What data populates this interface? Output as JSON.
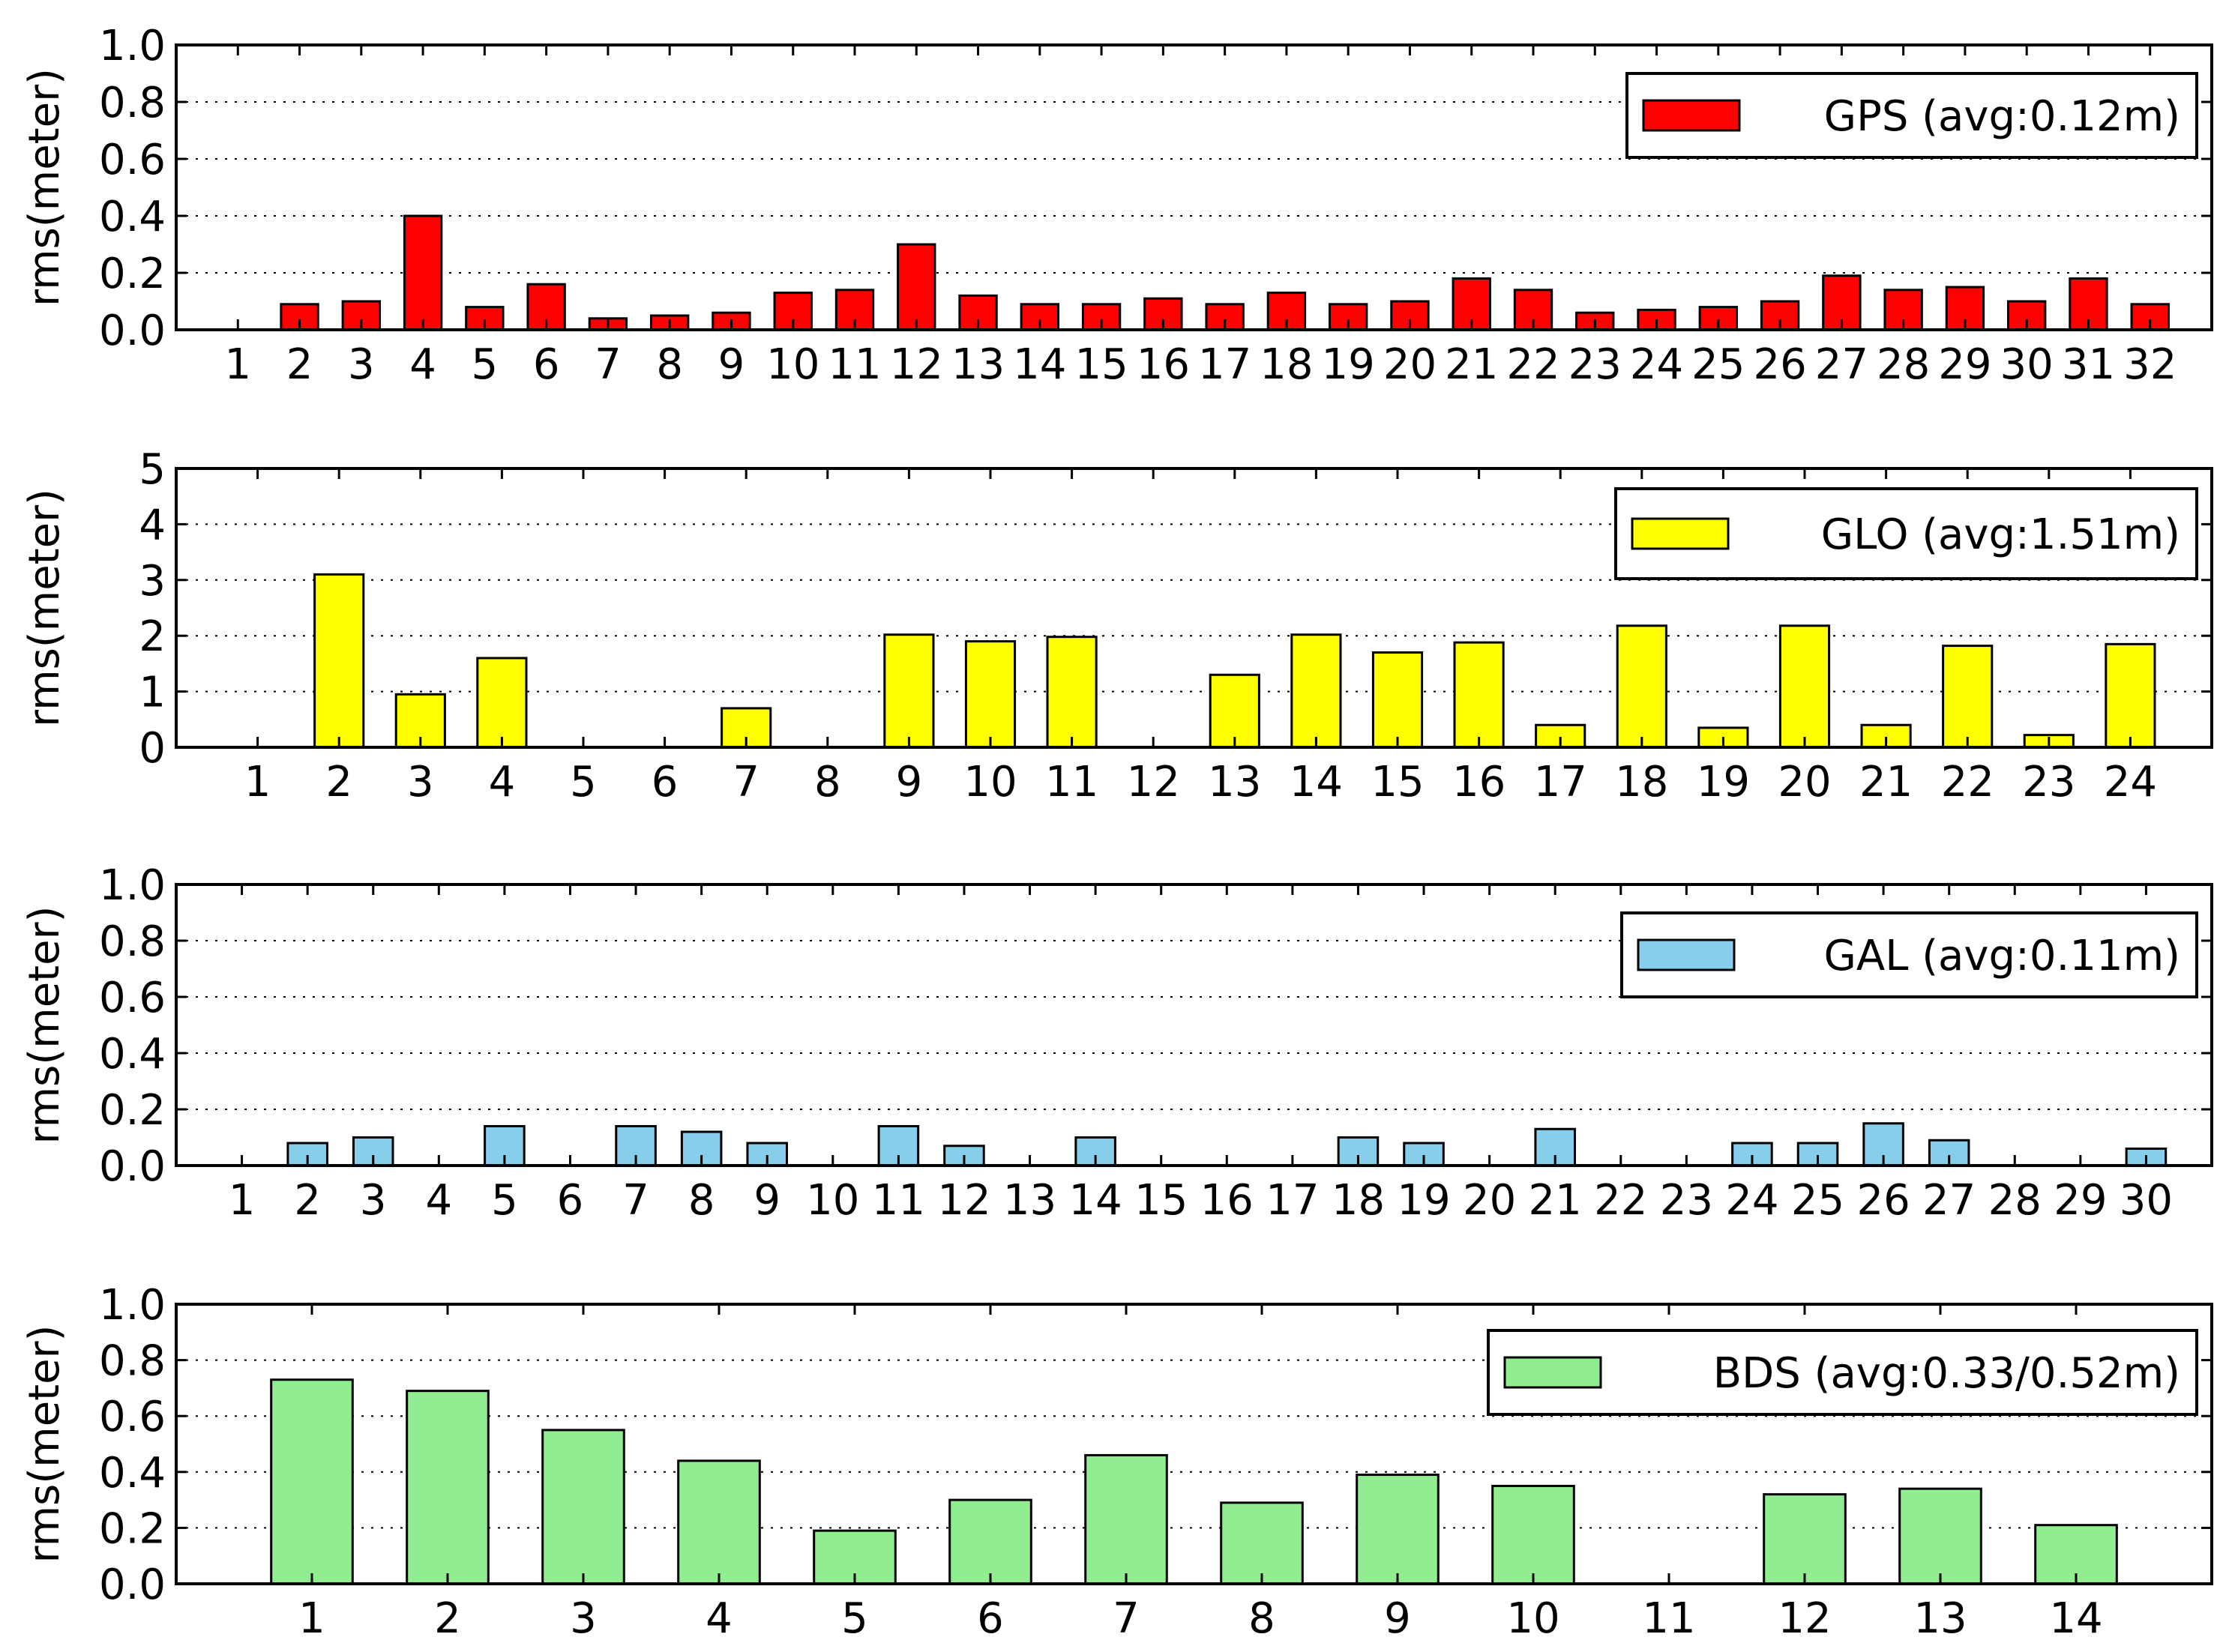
{
  "chart_data": [
    {
      "type": "bar",
      "title": "",
      "xlabel": "",
      "ylabel": "rms(meter)",
      "ylim": [
        0,
        1.0
      ],
      "yticks": [
        "0.0",
        "0.2",
        "0.4",
        "0.6",
        "0.8",
        "1.0"
      ],
      "grid": true,
      "legend": {
        "label": "GPS (avg:0.12m)",
        "position": "top-right"
      },
      "color": "#ff0000",
      "categories": [
        "1",
        "2",
        "3",
        "4",
        "5",
        "6",
        "7",
        "8",
        "9",
        "10",
        "11",
        "12",
        "13",
        "14",
        "15",
        "16",
        "17",
        "18",
        "19",
        "20",
        "21",
        "22",
        "23",
        "24",
        "25",
        "26",
        "27",
        "28",
        "29",
        "30",
        "31",
        "32"
      ],
      "values": [
        0,
        0.09,
        0.1,
        0.4,
        0.08,
        0.16,
        0.04,
        0.05,
        0.06,
        0.13,
        0.14,
        0.3,
        0.12,
        0.09,
        0.09,
        0.11,
        0.09,
        0.13,
        0.09,
        0.1,
        0.18,
        0.14,
        0.06,
        0.07,
        0.08,
        0.1,
        0.19,
        0.14,
        0.15,
        0.1,
        0.18,
        0.09
      ]
    },
    {
      "type": "bar",
      "title": "",
      "xlabel": "",
      "ylabel": "rms(meter)",
      "ylim": [
        0,
        5
      ],
      "yticks": [
        "0",
        "1",
        "2",
        "3",
        "4",
        "5"
      ],
      "grid": true,
      "legend": {
        "label": "GLO (avg:1.51m)",
        "position": "top-right"
      },
      "color": "#ffff00",
      "categories": [
        "1",
        "2",
        "3",
        "4",
        "5",
        "6",
        "7",
        "8",
        "9",
        "10",
        "11",
        "12",
        "13",
        "14",
        "15",
        "16",
        "17",
        "18",
        "19",
        "20",
        "21",
        "22",
        "23",
        "24"
      ],
      "values": [
        0,
        3.1,
        0.95,
        1.6,
        0,
        0,
        0.7,
        0,
        2.02,
        1.9,
        1.98,
        0,
        1.3,
        2.02,
        1.7,
        1.88,
        0.4,
        2.18,
        0.35,
        2.18,
        0.4,
        1.82,
        0.22,
        1.85
      ]
    },
    {
      "type": "bar",
      "title": "",
      "xlabel": "",
      "ylabel": "rms(meter)",
      "ylim": [
        0,
        1.0
      ],
      "yticks": [
        "0.0",
        "0.2",
        "0.4",
        "0.6",
        "0.8",
        "1.0"
      ],
      "grid": true,
      "legend": {
        "label": "GAL (avg:0.11m)",
        "position": "top-right"
      },
      "color": "#87ceeb",
      "categories": [
        "1",
        "2",
        "3",
        "4",
        "5",
        "6",
        "7",
        "8",
        "9",
        "10",
        "11",
        "12",
        "13",
        "14",
        "15",
        "16",
        "17",
        "18",
        "19",
        "20",
        "21",
        "22",
        "23",
        "24",
        "25",
        "26",
        "27",
        "28",
        "29",
        "30"
      ],
      "values": [
        0,
        0.08,
        0.1,
        0,
        0.14,
        0,
        0.14,
        0.12,
        0.08,
        0,
        0.14,
        0.07,
        0,
        0.1,
        0,
        0,
        0,
        0.1,
        0.08,
        0,
        0.13,
        0,
        0,
        0.08,
        0.08,
        0.15,
        0.09,
        0,
        0,
        0.06
      ]
    },
    {
      "type": "bar",
      "title": "",
      "xlabel": "",
      "ylabel": "rms(meter)",
      "ylim": [
        0,
        1.0
      ],
      "yticks": [
        "0.0",
        "0.2",
        "0.4",
        "0.6",
        "0.8",
        "1.0"
      ],
      "grid": true,
      "legend": {
        "label": "BDS (avg:0.33/0.52m)",
        "position": "top-right"
      },
      "color": "#90ee90",
      "categories": [
        "1",
        "2",
        "3",
        "4",
        "5",
        "6",
        "7",
        "8",
        "9",
        "10",
        "11",
        "12",
        "13",
        "14"
      ],
      "values": [
        0.73,
        0.69,
        0.55,
        0.44,
        0.19,
        0.3,
        0.46,
        0.29,
        0.39,
        0.35,
        0,
        0.32,
        0.34,
        0.21
      ]
    }
  ]
}
